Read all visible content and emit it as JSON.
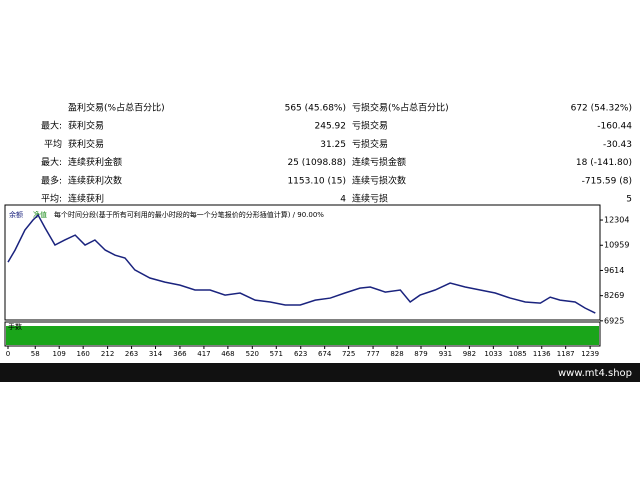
{
  "table": {
    "rows": [
      {
        "name": "盈利交易(%占总百分比)",
        "value": "565 (45.68%)",
        "name2": "亏损交易(%占总百分比)",
        "value2": "672 (54.32%)"
      },
      {
        "prefix": "最大:",
        "name": "获利交易",
        "value": "245.92",
        "name2": "亏损交易",
        "value2": "-160.44"
      },
      {
        "prefix": "平均",
        "name": "获利交易",
        "value": "31.25",
        "name2": "亏损交易",
        "value2": "-30.43"
      },
      {
        "prefix": "最大:",
        "name": "连续获利金额",
        "value": "25 (1098.88)",
        "name2": "连续亏损金额",
        "value2": "18 (-141.80)"
      },
      {
        "prefix": "最多:",
        "name": "连续获利次数",
        "value": "1153.10 (15)",
        "name2": "连续亏损次数",
        "value2": "-715.59 (8)"
      },
      {
        "prefix": "平均:",
        "name": "连续获利",
        "value": "4",
        "name2": "连续亏损",
        "value2": "5"
      }
    ]
  },
  "chart_data": {
    "type": "line",
    "tabs": [
      "余额",
      "净值"
    ],
    "subtitle": "每个时间分段(基于所有可利用的最小时段的每一个分笔报价的分形插值计算) / 90.00%",
    "volume_label": "手数",
    "x": [
      0,
      15,
      36,
      53,
      64,
      79,
      100,
      121,
      143,
      164,
      185,
      207,
      228,
      249,
      270,
      302,
      334,
      366,
      398,
      430,
      462,
      494,
      526,
      558,
      590,
      622,
      654,
      686,
      717,
      749,
      771,
      803,
      835,
      856,
      877,
      909,
      941,
      973,
      1005,
      1037,
      1069,
      1101,
      1133,
      1154,
      1175,
      1207,
      1228,
      1250
    ],
    "series": [
      {
        "name": "余额",
        "color": "#1a237e",
        "values": [
          10060,
          10700,
          11770,
          12300,
          12570,
          11880,
          10970,
          11240,
          11500,
          10970,
          11240,
          10700,
          10430,
          10280,
          9640,
          9210,
          8990,
          8830,
          8570,
          8570,
          8300,
          8410,
          8030,
          7930,
          7770,
          7770,
          8030,
          8140,
          8410,
          8670,
          8730,
          8460,
          8570,
          7930,
          8300,
          8570,
          8940,
          8730,
          8570,
          8410,
          8140,
          7930,
          7870,
          8190,
          8030,
          7930,
          7610,
          7340
        ]
      }
    ],
    "xlim": [
      0,
      1260
    ],
    "ylim": [
      6970,
      13000
    ],
    "xticks": [
      0,
      58,
      109,
      160,
      212,
      263,
      314,
      366,
      417,
      468,
      520,
      571,
      623,
      674,
      725,
      777,
      828,
      879,
      931,
      982,
      1033,
      1085,
      1136,
      1187,
      1239
    ],
    "yticks": [
      6925,
      8269,
      9614,
      10959,
      12304
    ]
  },
  "footer": "www.mt4.shop"
}
